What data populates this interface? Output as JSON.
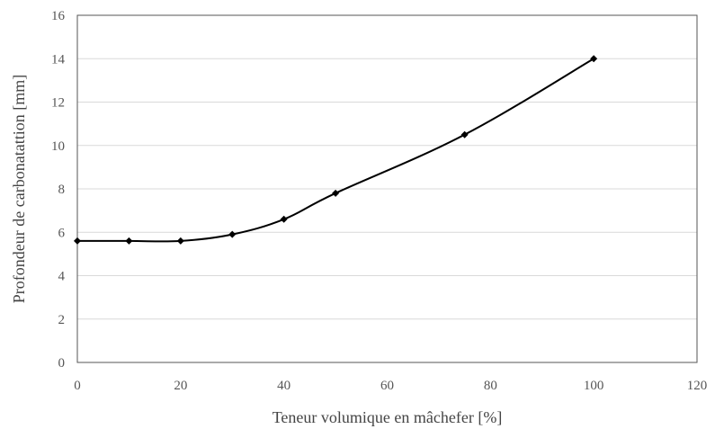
{
  "chart_data": {
    "type": "line",
    "title": "",
    "xlabel": "Teneur volumique en mâchefer [%]",
    "ylabel": "Profondeur de carbonatattion [mm]",
    "xlim": [
      0,
      120
    ],
    "ylim": [
      0,
      16
    ],
    "x_ticks": [
      "0",
      "20",
      "40",
      "60",
      "80",
      "100",
      "120"
    ],
    "y_ticks": [
      "0",
      "2",
      "4",
      "6",
      "8",
      "10",
      "12",
      "14",
      "16"
    ],
    "grid": true,
    "legend": "none",
    "smooth": true,
    "series": [
      {
        "x": [
          0,
          10,
          20,
          30,
          40,
          50,
          75,
          100
        ],
        "values": [
          5.6,
          5.6,
          5.6,
          5.9,
          6.6,
          7.8,
          10.5,
          14.0
        ],
        "color": "#000000",
        "marker": "diamond"
      }
    ]
  }
}
